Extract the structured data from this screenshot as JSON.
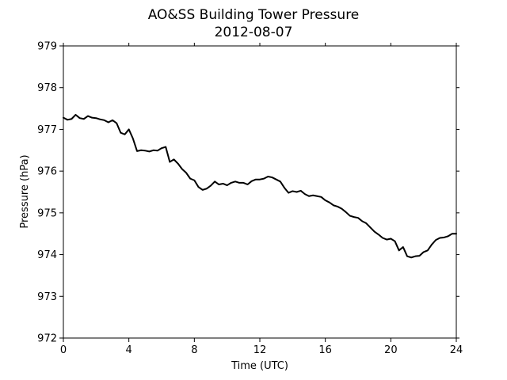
{
  "chart_data": {
    "type": "line",
    "title": "AO&SS Building Tower Pressure",
    "subtitle": "2012-08-07",
    "xlabel": "Time (UTC)",
    "ylabel": "Pressure (hPa)",
    "xlim": [
      0,
      24
    ],
    "ylim": [
      972,
      979
    ],
    "x_ticks": [
      0,
      4,
      8,
      12,
      16,
      20,
      24
    ],
    "y_ticks": [
      972,
      973,
      974,
      975,
      976,
      977,
      978,
      979
    ],
    "grid": false,
    "series": [
      {
        "color": "#000000",
        "x": [
          0.0,
          0.25,
          0.5,
          0.75,
          1.0,
          1.25,
          1.5,
          1.75,
          2.0,
          2.25,
          2.5,
          2.75,
          3.0,
          3.25,
          3.5,
          3.75,
          4.0,
          4.25,
          4.5,
          4.75,
          5.0,
          5.25,
          5.5,
          5.75,
          6.0,
          6.25,
          6.5,
          6.75,
          7.0,
          7.25,
          7.5,
          7.75,
          8.0,
          8.25,
          8.5,
          8.75,
          9.0,
          9.25,
          9.5,
          9.75,
          10.0,
          10.25,
          10.5,
          10.75,
          11.0,
          11.25,
          11.5,
          11.75,
          12.0,
          12.25,
          12.5,
          12.75,
          13.0,
          13.25,
          13.5,
          13.75,
          14.0,
          14.25,
          14.5,
          14.75,
          15.0,
          15.25,
          15.5,
          15.75,
          16.0,
          16.25,
          16.5,
          16.75,
          17.0,
          17.25,
          17.5,
          17.75,
          18.0,
          18.25,
          18.5,
          18.75,
          19.0,
          19.25,
          19.5,
          19.75,
          20.0,
          20.25,
          20.5,
          20.75,
          21.0,
          21.25,
          21.5,
          21.75,
          22.0,
          22.25,
          22.5,
          22.75,
          23.0,
          23.25,
          23.5,
          23.75,
          24.0
        ],
        "values": [
          977.28,
          977.23,
          977.25,
          977.35,
          977.27,
          977.25,
          977.32,
          977.28,
          977.27,
          977.24,
          977.22,
          977.17,
          977.22,
          977.15,
          976.92,
          976.88,
          977.0,
          976.78,
          976.48,
          976.5,
          976.49,
          976.47,
          976.5,
          976.49,
          976.55,
          976.58,
          976.22,
          976.28,
          976.18,
          976.05,
          975.96,
          975.82,
          975.78,
          975.62,
          975.55,
          975.58,
          975.65,
          975.75,
          975.68,
          975.7,
          975.66,
          975.72,
          975.75,
          975.72,
          975.72,
          975.68,
          975.76,
          975.8,
          975.8,
          975.82,
          975.87,
          975.85,
          975.8,
          975.75,
          975.6,
          975.48,
          975.52,
          975.5,
          975.53,
          975.45,
          975.4,
          975.42,
          975.4,
          975.38,
          975.3,
          975.25,
          975.18,
          975.15,
          975.1,
          975.02,
          974.93,
          974.9,
          974.88,
          974.8,
          974.75,
          974.65,
          974.55,
          974.48,
          974.4,
          974.36,
          974.38,
          974.32,
          974.1,
          974.18,
          973.96,
          973.93,
          973.96,
          973.97,
          974.06,
          974.1,
          974.24,
          974.35,
          974.4,
          974.41,
          974.44,
          974.5,
          974.5
        ]
      }
    ]
  }
}
